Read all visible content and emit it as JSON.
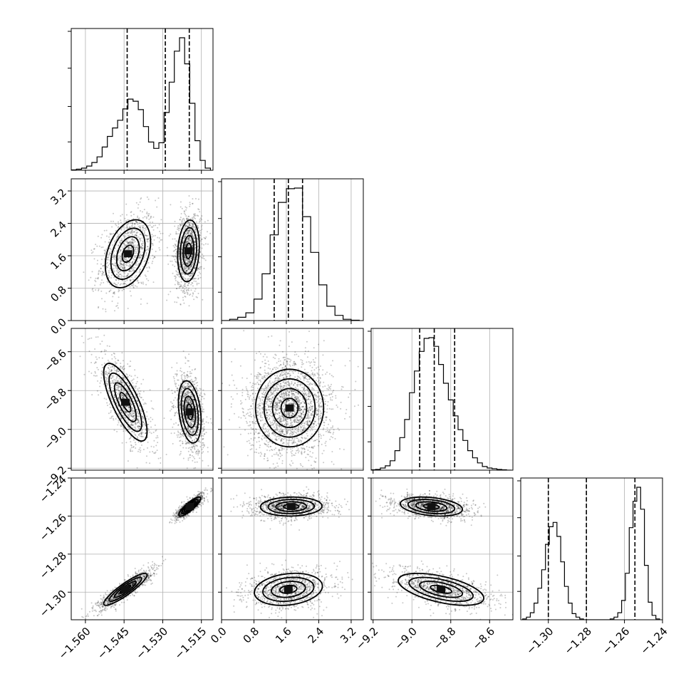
{
  "chart_data": {
    "type": "corner",
    "parameters": [
      {
        "ticks": [
          -1.56,
          -1.545,
          -1.53,
          -1.515
        ],
        "tick_labels": [
          "−1.560",
          "−1.545",
          "−1.530",
          "−1.515"
        ],
        "range": [
          -1.5655,
          -1.5105
        ],
        "quantiles": [
          -1.5438,
          -1.529,
          -1.5197
        ]
      },
      {
        "ticks": [
          0.0,
          0.8,
          1.6,
          2.4,
          3.2
        ],
        "tick_labels": [
          "0.0",
          "0.8",
          "1.6",
          "2.4",
          "3.2"
        ],
        "range": [
          0.0,
          3.5
        ],
        "quantiles": [
          1.3,
          1.65,
          2.0
        ]
      },
      {
        "ticks": [
          -9.2,
          -9.0,
          -8.8,
          -8.6
        ],
        "tick_labels": [
          "−9.2",
          "−9.0",
          "−8.8",
          "−8.6"
        ],
        "range": [
          -9.21,
          -8.48
        ],
        "quantiles": [
          -8.96,
          -8.885,
          -8.78
        ]
      },
      {
        "ticks": [
          -1.3,
          -1.28,
          -1.26,
          -1.24
        ],
        "tick_labels": [
          "−1.30",
          "−1.28",
          "−1.26",
          "−1.24"
        ],
        "range": [
          -1.3145,
          -1.24
        ],
        "quantiles": [
          -1.3,
          -1.28,
          -1.2545
        ]
      }
    ],
    "histograms": [
      {
        "param": 0,
        "bins": [
          -1.5645,
          -1.5625,
          -1.5605,
          -1.5585,
          -1.5565,
          -1.5545,
          -1.5525,
          -1.5505,
          -1.5485,
          -1.5465,
          -1.5445,
          -1.5425,
          -1.5405,
          -1.5385,
          -1.5365,
          -1.5345,
          -1.5325,
          -1.5305,
          -1.5285,
          -1.5265,
          -1.5245,
          -1.5225,
          -1.5205,
          -1.5185,
          -1.5165,
          -1.5145,
          -1.5125
        ],
        "counts": [
          0.5,
          1.5,
          3,
          6,
          11,
          19,
          33,
          48,
          60,
          71,
          87,
          101,
          98,
          86,
          62,
          40,
          31,
          39,
          82,
          125,
          169,
          188,
          151,
          95,
          42,
          14,
          3
        ]
      },
      {
        "param": 1,
        "bins": [
          0.1,
          0.3,
          0.5,
          0.7,
          0.9,
          1.1,
          1.3,
          1.5,
          1.7,
          1.9,
          2.1,
          2.3,
          2.5,
          2.7,
          2.9,
          3.1,
          3.3
        ],
        "counts": [
          0,
          2,
          5,
          12,
          33,
          72,
          132,
          182,
          203,
          204,
          160,
          105,
          55,
          22,
          8,
          2,
          0.5
        ]
      },
      {
        "param": 2,
        "bins": [
          -9.2,
          -9.175,
          -9.15,
          -9.125,
          -9.1,
          -9.075,
          -9.05,
          -9.025,
          -9.0,
          -8.975,
          -8.95,
          -8.925,
          -8.9,
          -8.875,
          -8.85,
          -8.825,
          -8.8,
          -8.775,
          -8.75,
          -8.725,
          -8.7,
          -8.675,
          -8.65,
          -8.625,
          -8.6,
          -8.575,
          -8.55,
          -8.525,
          -8.5
        ],
        "counts": [
          0.5,
          1,
          3,
          6,
          13,
          27,
          45,
          70,
          107,
          137,
          164,
          182,
          183,
          171,
          146,
          120,
          97,
          75,
          56,
          41,
          27,
          17,
          10,
          5,
          3,
          2,
          1,
          0.5,
          0
        ]
      },
      {
        "param": 3,
        "bins": [
          -1.3125,
          -1.3105,
          -1.3085,
          -1.3065,
          -1.3045,
          -1.3025,
          -1.3005,
          -1.2985,
          -1.2965,
          -1.2945,
          -1.2925,
          -1.2905,
          -1.2885,
          -1.2865,
          -1.2845,
          -1.2825,
          -1.2805,
          -1.2785,
          -1.2765,
          -1.2745,
          -1.2725,
          -1.2705,
          -1.2685,
          -1.2665,
          -1.2645,
          -1.2625,
          -1.2605,
          -1.2585,
          -1.2565,
          -1.2545,
          -1.2525,
          -1.2505,
          -1.2485,
          -1.2465,
          -1.2445,
          -1.2425
        ],
        "counts": [
          1,
          3,
          8,
          19,
          36,
          57,
          86,
          106,
          111,
          95,
          66,
          38,
          19,
          7,
          3,
          1,
          0,
          0,
          0,
          0,
          0,
          0,
          0,
          1,
          3,
          8,
          22,
          53,
          105,
          135,
          151,
          126,
          62,
          20,
          5,
          1
        ]
      }
    ],
    "scatter_2d": [
      {
        "x": 0,
        "y": 1,
        "modes": [
          {
            "center": [
              -1.5435,
              1.65
            ],
            "sd": [
              0.0044,
              0.42
            ],
            "rho": 0.35,
            "weight": 0.47
          },
          {
            "center": [
              -1.52,
              1.72
            ],
            "sd": [
              0.0021,
              0.38
            ],
            "rho": 0.15,
            "weight": 0.53
          }
        ]
      },
      {
        "x": 0,
        "y": 2,
        "modes": [
          {
            "center": [
              -1.5445,
              -8.86
            ],
            "sd": [
              0.0042,
              0.1
            ],
            "rho": -0.75,
            "weight": 0.47
          },
          {
            "center": [
              -1.5195,
              -8.91
            ],
            "sd": [
              0.0022,
              0.08
            ],
            "rho": -0.3,
            "weight": 0.53
          }
        ]
      },
      {
        "x": 0,
        "y": 3,
        "modes": [
          {
            "center": [
              -1.5445,
              -1.2985
            ],
            "sd": [
              0.0042,
              0.0042
            ],
            "rho": 0.9,
            "weight": 0.47
          },
          {
            "center": [
              -1.5195,
              -1.255
            ],
            "sd": [
              0.0021,
              0.0025
            ],
            "rho": 0.85,
            "weight": 0.53
          }
        ]
      },
      {
        "x": 1,
        "y": 2,
        "modes": [
          {
            "center": [
              1.68,
              -8.89
            ],
            "sd": [
              0.42,
              0.1
            ],
            "rho": 0.0,
            "weight": 1.0
          }
        ]
      },
      {
        "x": 1,
        "y": 3,
        "modes": [
          {
            "center": [
              1.72,
              -1.255
            ],
            "sd": [
              0.38,
              0.0025
            ],
            "rho": 0.05,
            "weight": 0.53
          },
          {
            "center": [
              1.65,
              -1.2985
            ],
            "sd": [
              0.42,
              0.0042
            ],
            "rho": 0.2,
            "weight": 0.47
          }
        ]
      },
      {
        "x": 2,
        "y": 3,
        "modes": [
          {
            "center": [
              -8.9,
              -1.255
            ],
            "sd": [
              0.08,
              0.0025
            ],
            "rho": -0.3,
            "weight": 0.53
          },
          {
            "center": [
              -8.85,
              -1.2985
            ],
            "sd": [
              0.11,
              0.0042
            ],
            "rho": -0.55,
            "weight": 0.47
          }
        ]
      }
    ],
    "contour_levels": [
      0.5,
      1.0,
      1.5,
      2.0
    ],
    "grid": true,
    "title": "",
    "xlabel": "",
    "ylabel": ""
  }
}
